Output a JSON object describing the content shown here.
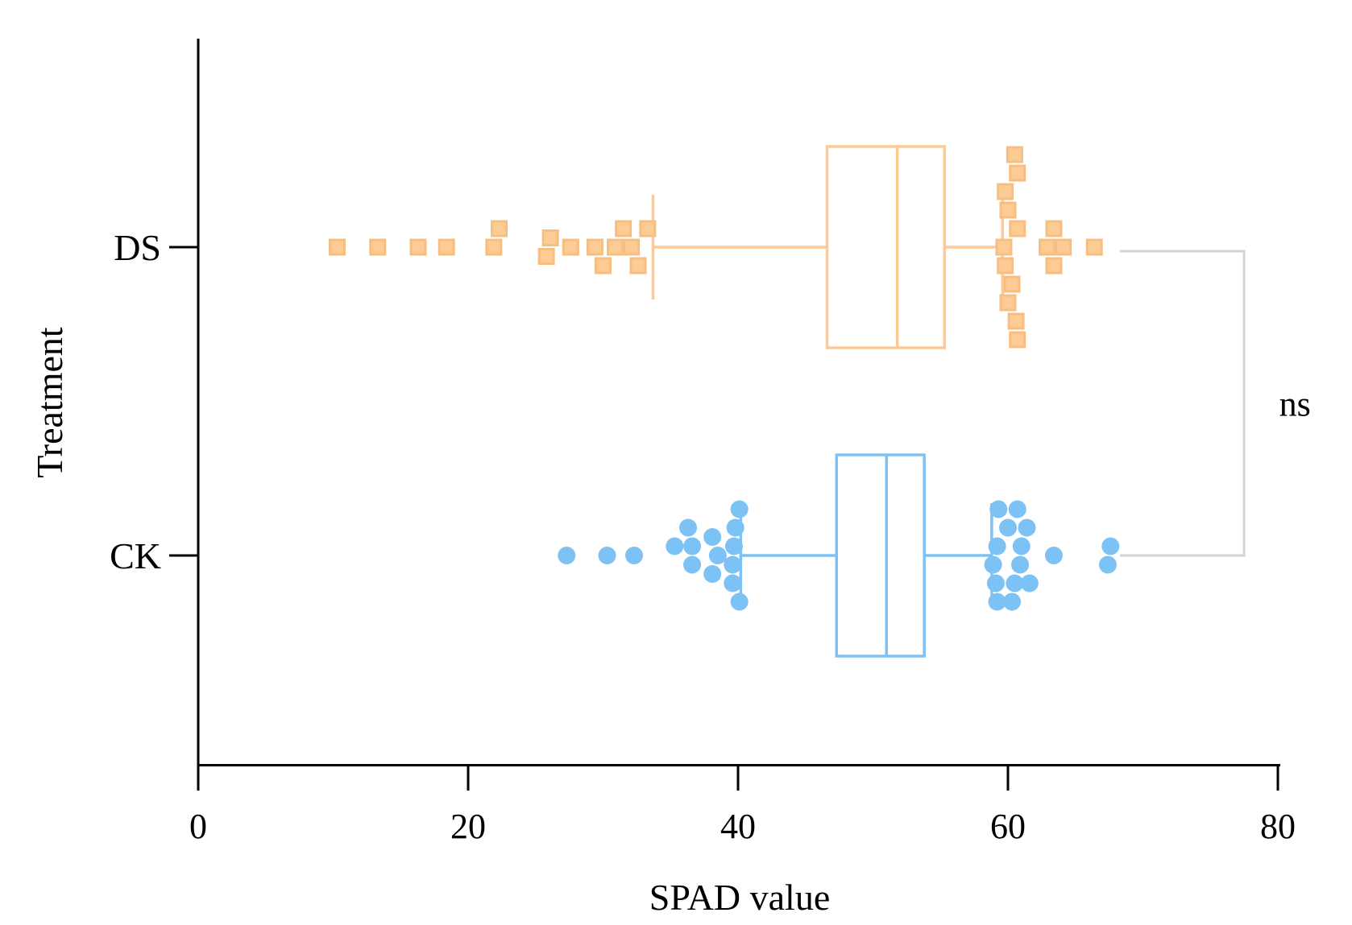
{
  "chart_data": {
    "type": "box-swarm",
    "orientation": "horizontal",
    "xlabel": "SPAD value",
    "ylabel": "Treatment",
    "xlim": [
      0,
      80
    ],
    "xticks": [
      0,
      20,
      40,
      60,
      80
    ],
    "categories": [
      "DS",
      "CK"
    ],
    "significance": "ns",
    "series": [
      {
        "name": "DS",
        "color": "#FFC993",
        "marker": "square",
        "box": {
          "whisker_low": 33.7,
          "q1": 46.6,
          "median": 51.8,
          "q3": 55.3,
          "whisker_high": 59.6
        },
        "points": [
          {
            "x": 10.3,
            "offset": 0
          },
          {
            "x": 13.3,
            "offset": 0
          },
          {
            "x": 16.3,
            "offset": 0
          },
          {
            "x": 18.4,
            "offset": 0
          },
          {
            "x": 22.3,
            "offset": 1
          },
          {
            "x": 21.9,
            "offset": 0
          },
          {
            "x": 26.1,
            "offset": 0.5
          },
          {
            "x": 27.6,
            "offset": 0
          },
          {
            "x": 25.8,
            "offset": -0.5
          },
          {
            "x": 29.4,
            "offset": 0
          },
          {
            "x": 30.0,
            "offset": -1
          },
          {
            "x": 31.5,
            "offset": 1
          },
          {
            "x": 30.9,
            "offset": 0
          },
          {
            "x": 32.1,
            "offset": 0
          },
          {
            "x": 33.3,
            "offset": 1
          },
          {
            "x": 32.6,
            "offset": -1
          },
          {
            "x": 60.5,
            "offset": 5
          },
          {
            "x": 60.7,
            "offset": 4
          },
          {
            "x": 59.8,
            "offset": 3
          },
          {
            "x": 60.0,
            "offset": 2
          },
          {
            "x": 60.7,
            "offset": 1
          },
          {
            "x": 59.7,
            "offset": 0
          },
          {
            "x": 59.8,
            "offset": -1
          },
          {
            "x": 60.3,
            "offset": -2
          },
          {
            "x": 60.0,
            "offset": -3
          },
          {
            "x": 60.6,
            "offset": -4
          },
          {
            "x": 60.7,
            "offset": -5
          },
          {
            "x": 63.4,
            "offset": 1
          },
          {
            "x": 62.9,
            "offset": 0
          },
          {
            "x": 64.1,
            "offset": 0
          },
          {
            "x": 63.4,
            "offset": -1
          },
          {
            "x": 66.4,
            "offset": 0
          }
        ]
      },
      {
        "name": "CK",
        "color": "#7DC2F5",
        "marker": "circle",
        "box": {
          "whisker_low": 40.2,
          "q1": 47.3,
          "median": 51.0,
          "q3": 53.8,
          "whisker_high": 58.8
        },
        "points": [
          {
            "x": 27.3,
            "offset": 0
          },
          {
            "x": 30.3,
            "offset": 0
          },
          {
            "x": 32.3,
            "offset": 0
          },
          {
            "x": 35.3,
            "offset": 0.5
          },
          {
            "x": 36.3,
            "offset": 1.5
          },
          {
            "x": 36.6,
            "offset": 0.5
          },
          {
            "x": 36.6,
            "offset": -0.5
          },
          {
            "x": 38.1,
            "offset": 1
          },
          {
            "x": 38.5,
            "offset": 0
          },
          {
            "x": 38.1,
            "offset": -1
          },
          {
            "x": 40.1,
            "offset": 2.5
          },
          {
            "x": 39.8,
            "offset": 1.5
          },
          {
            "x": 39.7,
            "offset": 0.5
          },
          {
            "x": 39.6,
            "offset": -0.5
          },
          {
            "x": 39.6,
            "offset": -1.5
          },
          {
            "x": 40.1,
            "offset": -2.5
          },
          {
            "x": 59.3,
            "offset": 2.5
          },
          {
            "x": 60.7,
            "offset": 2.5
          },
          {
            "x": 60.0,
            "offset": 1.5
          },
          {
            "x": 61.4,
            "offset": 1.5
          },
          {
            "x": 59.2,
            "offset": 0.5
          },
          {
            "x": 61.0,
            "offset": 0.5
          },
          {
            "x": 63.4,
            "offset": 0
          },
          {
            "x": 58.9,
            "offset": -0.5
          },
          {
            "x": 60.9,
            "offset": -0.5
          },
          {
            "x": 59.1,
            "offset": -1.5
          },
          {
            "x": 60.5,
            "offset": -1.5
          },
          {
            "x": 61.6,
            "offset": -1.5
          },
          {
            "x": 59.2,
            "offset": -2.5
          },
          {
            "x": 60.3,
            "offset": -2.5
          },
          {
            "x": 67.6,
            "offset": 0.5
          },
          {
            "x": 67.4,
            "offset": -0.5
          }
        ]
      }
    ]
  }
}
